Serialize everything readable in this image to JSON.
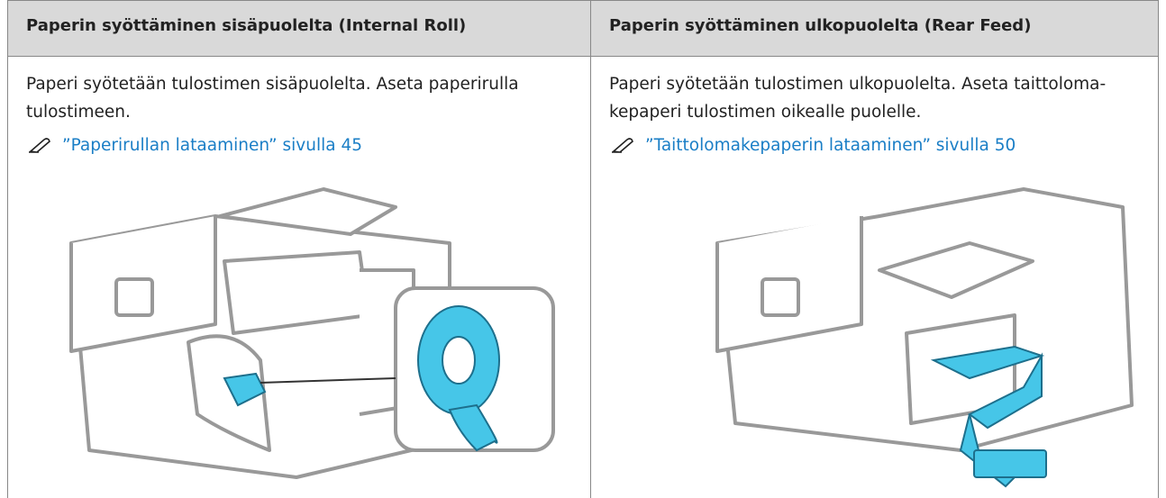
{
  "columns": [
    {
      "header": "Paperin syöttäminen sisäpuolelta (Internal Roll)",
      "text": "Paperi syötetään tulostimen sisäpuolelta. Aseta paperirulla tulostimeen.",
      "link": "”Paperirullan lataaminen” sivulla 45"
    },
    {
      "header": "Paperin syöttäminen ulkopuolelta (Rear Feed)",
      "text": "Paperi syötetään tulostimen ulkopuolelta. Aseta taittoloma­kepaperi tulostimen oikealle puolelle.",
      "link": "”Taittolomakepaperin lataaminen” sivulla 50"
    }
  ]
}
